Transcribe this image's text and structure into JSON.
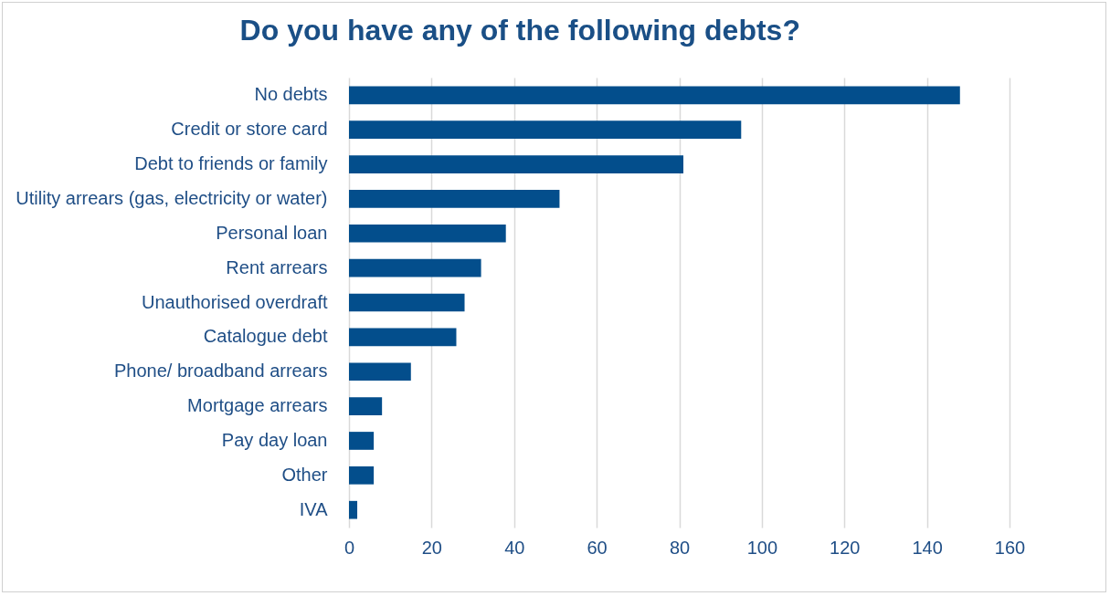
{
  "chart_data": {
    "type": "bar",
    "orientation": "horizontal",
    "title": "Do you have any of the following debts?",
    "categories": [
      "No debts",
      "Credit or store card",
      "Debt to friends or family",
      "Utility arrears (gas, electricity or water)",
      "Personal loan",
      "Rent arrears",
      "Unauthorised overdraft",
      "Catalogue debt",
      "Phone/ broadband arrears",
      "Mortgage arrears",
      "Pay day loan",
      "Other",
      "IVA"
    ],
    "values": [
      148,
      95,
      81,
      51,
      38,
      32,
      28,
      26,
      15,
      8,
      6,
      6,
      2
    ],
    "color": "#034e8c",
    "xlim": [
      0,
      160
    ],
    "xticks": [
      0,
      20,
      40,
      60,
      80,
      100,
      120,
      140,
      160
    ],
    "grid": "x"
  }
}
